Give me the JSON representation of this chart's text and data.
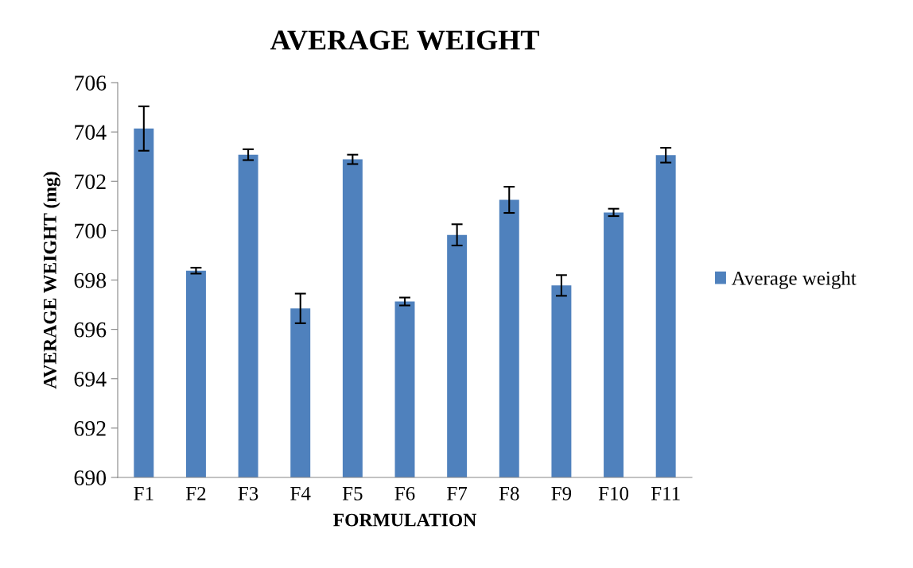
{
  "chart_data": {
    "type": "bar",
    "title": "AVERAGE WEIGHT",
    "xlabel": "FORMULATION",
    "ylabel": "AVERAGE WEIGHT (mg)",
    "categories": [
      "F1",
      "F2",
      "F3",
      "F4",
      "F5",
      "F6",
      "F7",
      "F8",
      "F9",
      "F10",
      "F11"
    ],
    "series": [
      {
        "name": "Average weight",
        "color": "#4f81bd",
        "values": [
          704.14,
          698.38,
          703.08,
          696.85,
          702.89,
          697.13,
          699.83,
          701.25,
          697.78,
          700.74,
          703.06
        ],
        "errors": [
          0.9,
          0.12,
          0.22,
          0.6,
          0.19,
          0.16,
          0.43,
          0.53,
          0.42,
          0.15,
          0.3
        ]
      }
    ],
    "ylim": [
      690,
      706
    ],
    "yticks": [
      690,
      692,
      694,
      696,
      698,
      700,
      702,
      704,
      706
    ],
    "grid": false,
    "legend": "right"
  }
}
